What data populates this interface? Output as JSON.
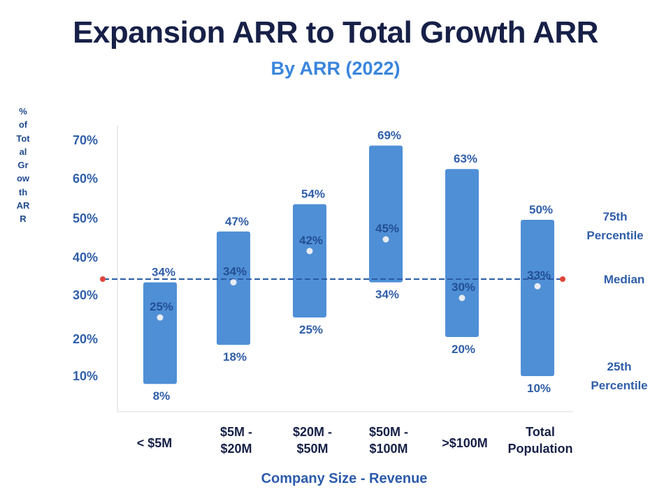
{
  "chart_data": {
    "type": "range-bar",
    "title": "Expansion ARR to Total Growth ARR",
    "subtitle": "By ARR (2022)",
    "ylabel": "% of Total Growth ARR",
    "xlabel": "Company Size - Revenue",
    "yticks": [
      "70%",
      "60%",
      "50%",
      "40%",
      "30%",
      "20%",
      "10%"
    ],
    "ytick_values": [
      70,
      60,
      50,
      40,
      30,
      20,
      10
    ],
    "ylim": [
      0,
      73
    ],
    "categories": [
      [
        "< $5M"
      ],
      [
        "$5M -",
        "$20M"
      ],
      [
        "$20M -",
        "$50M"
      ],
      [
        "$50M -",
        "$100M"
      ],
      [
        ">$100M"
      ],
      [
        "Total",
        "Population"
      ]
    ],
    "series": [
      {
        "name": "75th Percentile",
        "values": [
          34,
          47,
          54,
          69,
          63,
          50
        ],
        "labels": [
          "34%",
          "47%",
          "54%",
          "69%",
          "63%",
          "50%"
        ]
      },
      {
        "name": "Median",
        "values": [
          25,
          34,
          42,
          45,
          30,
          33
        ],
        "labels": [
          "25%",
          "34%",
          "42%",
          "45%",
          "30%",
          "33%"
        ]
      },
      {
        "name": "25th Percentile",
        "values": [
          8,
          18,
          25,
          34,
          20,
          10
        ],
        "labels": [
          "8%",
          "18%",
          "25%",
          "34%",
          "20%",
          "10%"
        ]
      }
    ],
    "reference_line": {
      "name": "Median",
      "value": 33
    },
    "annotations": {
      "p75": [
        "75th",
        "Percentile"
      ],
      "median": "Median",
      "p25": [
        "25th",
        "Percentile"
      ]
    },
    "colors": {
      "bar": "#4f8fd6",
      "label": "#2f5ea8",
      "inner_label": "#234f93",
      "title": "#172047",
      "subtitle": "#3a86dd",
      "axis": "#e3e6ec",
      "ref_line": "#2a5ba5",
      "ref_dot": "#e0453a",
      "median_dot": "#e9edf3"
    }
  }
}
